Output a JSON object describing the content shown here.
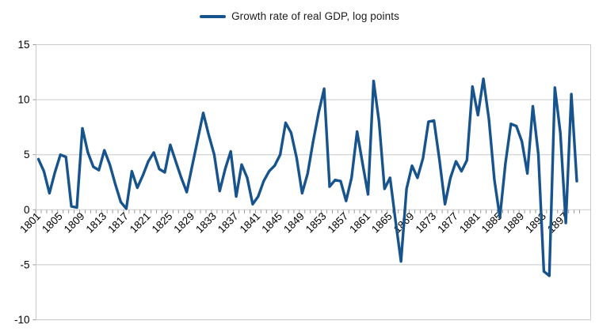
{
  "legend": {
    "series_label": "Growth rate of real GDP, log points"
  },
  "colors": {
    "series": "#17538D",
    "grid": "#C9C9C9",
    "tick": "#9A9A9A",
    "axis_text": "#000000",
    "legend_text": "#1A1A1A",
    "background": "#FFFFFF"
  },
  "chart_data": {
    "type": "line",
    "title": "",
    "series_name": "Growth rate of real GDP, log points",
    "legend_position": "top",
    "grid": "horizontal",
    "ylim": [
      -10,
      15
    ],
    "y_tick_step": 5,
    "y_tick_labels": [
      "15",
      "10",
      "5",
      "0",
      "-5",
      "-10"
    ],
    "x_tick_labels": [
      "1801",
      "1805",
      "1809",
      "1813",
      "1817",
      "1821",
      "1825",
      "1829",
      "1833",
      "1837",
      "1841",
      "1845",
      "1849",
      "1853",
      "1857",
      "1861",
      "1865",
      "1869",
      "1873",
      "1877",
      "1881",
      "1885",
      "1889",
      "1893",
      "1897"
    ],
    "x": [
      1801,
      1802,
      1803,
      1804,
      1805,
      1806,
      1807,
      1808,
      1809,
      1810,
      1811,
      1812,
      1813,
      1814,
      1815,
      1816,
      1817,
      1818,
      1819,
      1820,
      1821,
      1822,
      1823,
      1824,
      1825,
      1826,
      1827,
      1828,
      1829,
      1830,
      1831,
      1832,
      1833,
      1834,
      1835,
      1836,
      1837,
      1838,
      1839,
      1840,
      1841,
      1842,
      1843,
      1844,
      1845,
      1846,
      1847,
      1848,
      1849,
      1850,
      1851,
      1852,
      1853,
      1854,
      1855,
      1856,
      1857,
      1858,
      1859,
      1860,
      1861,
      1862,
      1863,
      1864,
      1865,
      1866,
      1867,
      1868,
      1869,
      1870,
      1871,
      1872,
      1873,
      1874,
      1875,
      1876,
      1877,
      1878,
      1879,
      1880,
      1881,
      1882,
      1883,
      1884,
      1885,
      1886,
      1887,
      1888,
      1889,
      1890,
      1891,
      1892,
      1893,
      1894,
      1895,
      1896,
      1897,
      1898,
      1899
    ],
    "values": [
      4.6,
      3.5,
      1.5,
      3.4,
      5.0,
      4.8,
      0.3,
      0.2,
      7.4,
      5.2,
      3.9,
      3.6,
      5.4,
      4.1,
      2.3,
      0.7,
      0.1,
      3.5,
      2.0,
      3.1,
      4.4,
      5.2,
      3.7,
      3.4,
      5.9,
      4.4,
      2.9,
      1.6,
      4.0,
      6.4,
      8.8,
      6.8,
      5.0,
      1.7,
      3.7,
      5.3,
      1.2,
      4.1,
      2.9,
      0.5,
      1.2,
      2.6,
      3.5,
      4.0,
      5.0,
      7.9,
      7.0,
      4.7,
      1.5,
      3.3,
      6.2,
      8.8,
      11.0,
      2.1,
      2.7,
      2.6,
      0.8,
      2.9,
      7.1,
      4.2,
      1.4,
      11.7,
      8.0,
      1.9,
      2.9,
      -1.0,
      -4.7,
      1.9,
      4.0,
      2.9,
      4.7,
      8.0,
      8.1,
      4.5,
      0.5,
      2.9,
      4.4,
      3.5,
      4.5,
      11.2,
      8.6,
      11.9,
      8.2,
      2.7,
      -0.7,
      4.2,
      7.8,
      7.6,
      6.2,
      3.3,
      9.4,
      5.0,
      -5.6,
      -6.0,
      11.1,
      7.0,
      -1.2,
      10.5,
      2.6
    ]
  }
}
